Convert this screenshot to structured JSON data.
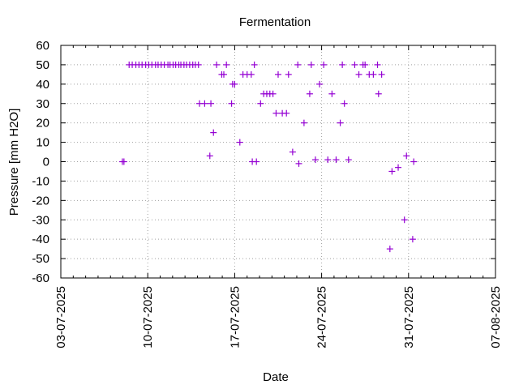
{
  "chart_data": {
    "type": "scatter",
    "title": "Fermentation",
    "xlabel": "Date",
    "ylabel": "Pressure [mm H2O]",
    "x_ticks": [
      "03-07-2025",
      "10-07-2025",
      "17-07-2025",
      "24-07-2025",
      "31-07-2025",
      "07-08-2025"
    ],
    "y_ticks": [
      60,
      50,
      40,
      30,
      20,
      10,
      0,
      -10,
      -20,
      -30,
      -40,
      -50,
      -60
    ],
    "xlim": [
      "2025-07-03",
      "2025-08-07"
    ],
    "ylim": [
      -60,
      60
    ],
    "grid": true,
    "marker": "plus",
    "color": "#9400d3",
    "series": [
      {
        "points": [
          [
            "2025-07-07T23:00",
            0
          ],
          [
            "2025-07-08T02:00",
            0
          ],
          [
            "2025-07-08T12:00",
            50
          ],
          [
            "2025-07-08T18:00",
            50
          ],
          [
            "2025-07-09T01:00",
            50
          ],
          [
            "2025-07-09T07:00",
            50
          ],
          [
            "2025-07-09T13:00",
            50
          ],
          [
            "2025-07-09T20:00",
            50
          ],
          [
            "2025-07-10T02:00",
            50
          ],
          [
            "2025-07-10T08:00",
            50
          ],
          [
            "2025-07-10T15:00",
            50
          ],
          [
            "2025-07-10T20:00",
            50
          ],
          [
            "2025-07-11T02:00",
            50
          ],
          [
            "2025-07-11T08:00",
            50
          ],
          [
            "2025-07-11T15:00",
            50
          ],
          [
            "2025-07-11T19:00",
            50
          ],
          [
            "2025-07-12T01:00",
            50
          ],
          [
            "2025-07-12T06:00",
            50
          ],
          [
            "2025-07-12T12:00",
            50
          ],
          [
            "2025-07-12T16:00",
            50
          ],
          [
            "2025-07-12T22:00",
            50
          ],
          [
            "2025-07-13T03:00",
            50
          ],
          [
            "2025-07-13T09:00",
            50
          ],
          [
            "2025-07-13T15:00",
            50
          ],
          [
            "2025-07-13T20:00",
            50
          ],
          [
            "2025-07-14T02:00",
            50
          ],
          [
            "2025-07-14T04:00",
            30
          ],
          [
            "2025-07-14T14:00",
            30
          ],
          [
            "2025-07-15T02:00",
            30
          ],
          [
            "2025-07-15T00:00",
            3
          ],
          [
            "2025-07-15T07:00",
            15
          ],
          [
            "2025-07-15T13:00",
            50
          ],
          [
            "2025-07-15T23:00",
            45
          ],
          [
            "2025-07-16T03:00",
            45
          ],
          [
            "2025-07-16T08:00",
            50
          ],
          [
            "2025-07-16T18:00",
            30
          ],
          [
            "2025-07-16T20:00",
            40
          ],
          [
            "2025-07-17T00:00",
            40
          ],
          [
            "2025-07-17T10:00",
            10
          ],
          [
            "2025-07-17T16:00",
            45
          ],
          [
            "2025-07-18T00:00",
            45
          ],
          [
            "2025-07-18T08:00",
            45
          ],
          [
            "2025-07-18T14:00",
            50
          ],
          [
            "2025-07-18T10:00",
            0
          ],
          [
            "2025-07-18T18:00",
            0
          ],
          [
            "2025-07-19T02:00",
            30
          ],
          [
            "2025-07-19T08:00",
            35
          ],
          [
            "2025-07-19T14:00",
            35
          ],
          [
            "2025-07-19T20:00",
            35
          ],
          [
            "2025-07-20T02:00",
            35
          ],
          [
            "2025-07-20T08:00",
            25
          ],
          [
            "2025-07-20T12:00",
            45
          ],
          [
            "2025-07-20T20:00",
            25
          ],
          [
            "2025-07-21T04:00",
            25
          ],
          [
            "2025-07-21T08:00",
            45
          ],
          [
            "2025-07-21T16:00",
            5
          ],
          [
            "2025-07-22T02:00",
            50
          ],
          [
            "2025-07-22T04:00",
            -1
          ],
          [
            "2025-07-22T14:00",
            20
          ],
          [
            "2025-07-23T01:00",
            35
          ],
          [
            "2025-07-23T04:00",
            50
          ],
          [
            "2025-07-23T12:00",
            1
          ],
          [
            "2025-07-23T20:00",
            40
          ],
          [
            "2025-07-24T04:00",
            50
          ],
          [
            "2025-07-24T12:00",
            1
          ],
          [
            "2025-07-24T20:00",
            35
          ],
          [
            "2025-07-25T04:00",
            1
          ],
          [
            "2025-07-25T12:00",
            20
          ],
          [
            "2025-07-25T16:00",
            50
          ],
          [
            "2025-07-25T20:00",
            30
          ],
          [
            "2025-07-26T04:00",
            1
          ],
          [
            "2025-07-26T16:00",
            50
          ],
          [
            "2025-07-27T00:00",
            45
          ],
          [
            "2025-07-27T08:00",
            50
          ],
          [
            "2025-07-27T12:00",
            50
          ],
          [
            "2025-07-27T20:00",
            45
          ],
          [
            "2025-07-28T04:00",
            45
          ],
          [
            "2025-07-28T12:00",
            50
          ],
          [
            "2025-07-28T14:00",
            35
          ],
          [
            "2025-07-28T20:00",
            45
          ],
          [
            "2025-07-29T12:00",
            -45
          ],
          [
            "2025-07-29T16:00",
            -5
          ],
          [
            "2025-07-30T04:00",
            -3
          ],
          [
            "2025-07-30T16:00",
            -30
          ],
          [
            "2025-07-30T20:00",
            3
          ],
          [
            "2025-07-31T08:00",
            -40
          ],
          [
            "2025-07-31T10:00",
            0
          ]
        ]
      }
    ]
  }
}
